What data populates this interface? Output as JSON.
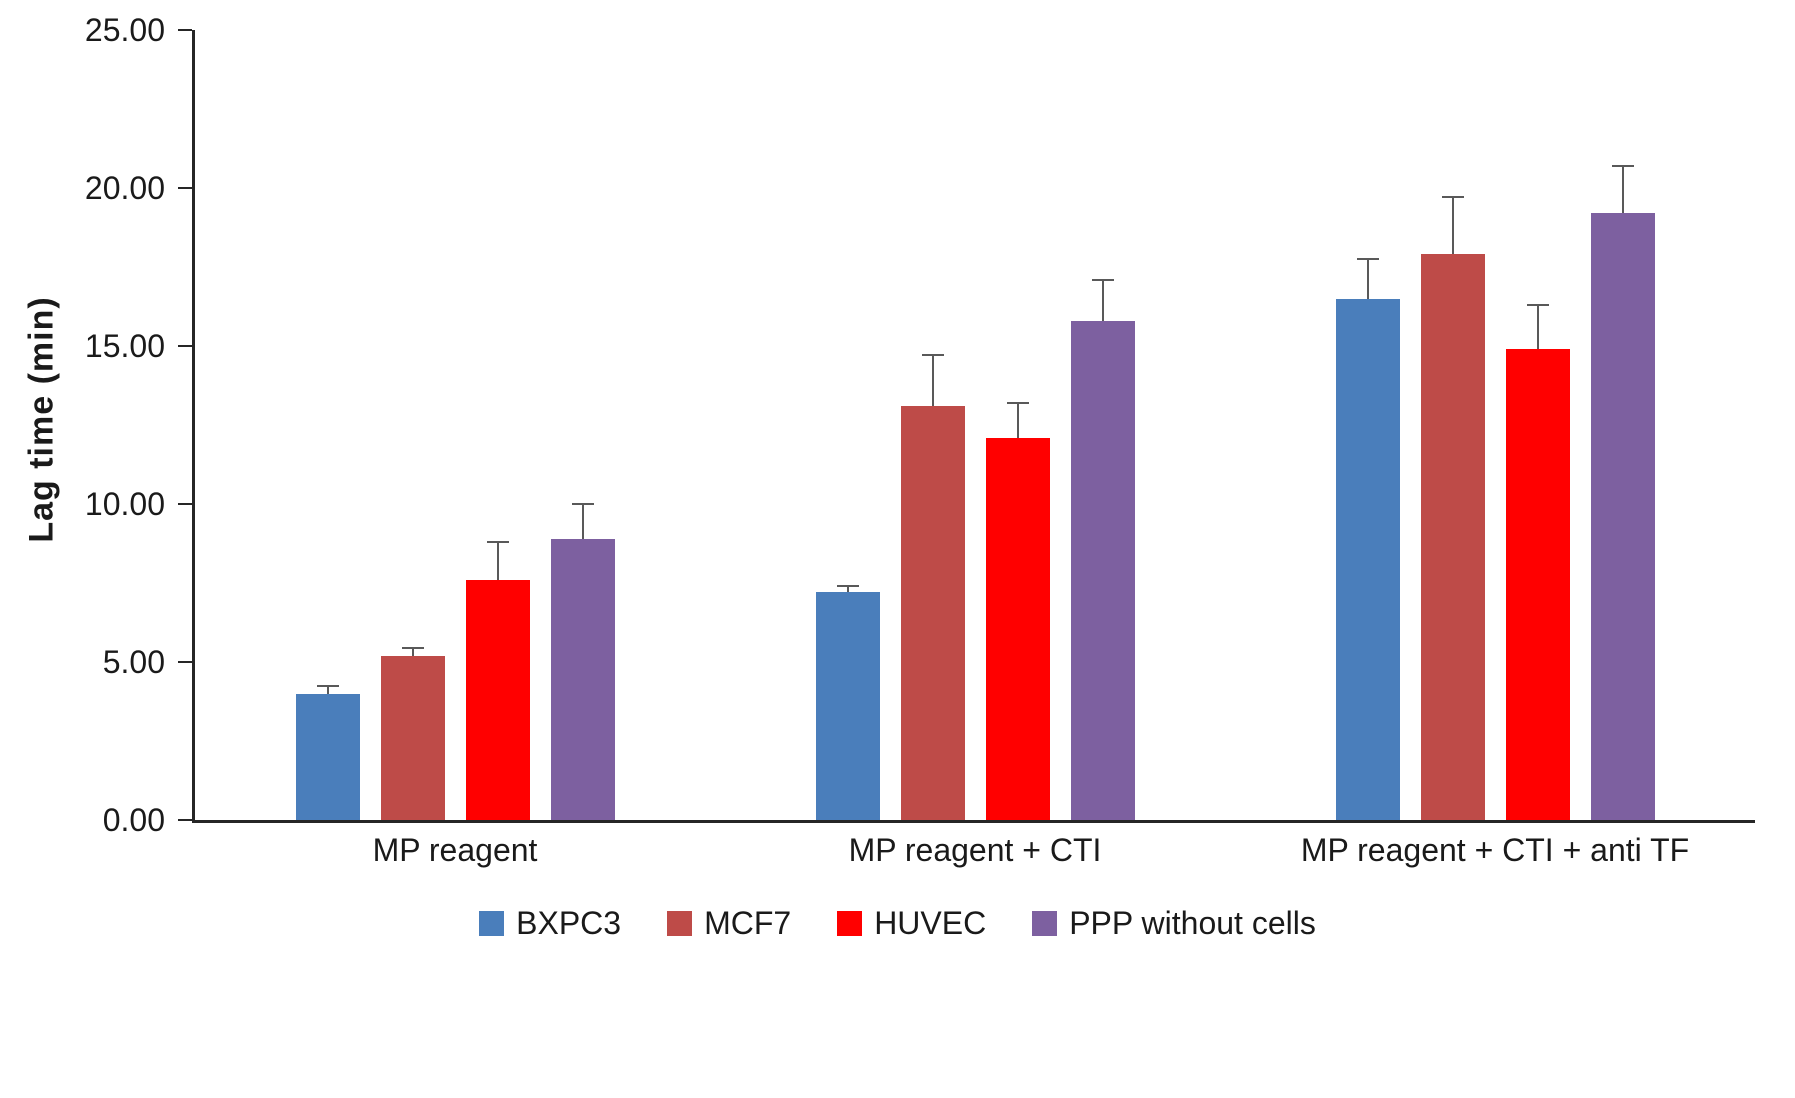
{
  "chart_data": {
    "type": "bar",
    "title": "",
    "xlabel": "",
    "ylabel": "Lag time (min)",
    "ylim": [
      0,
      25
    ],
    "ytick_step": 5,
    "ytick_labels": [
      "0.00",
      "5.00",
      "10.00",
      "15.00",
      "20.00",
      "25.00"
    ],
    "grid": false,
    "legend_position": "bottom",
    "categories": [
      "MP reagent",
      "MP reagent + CTI",
      "MP reagent + CTI + anti TF"
    ],
    "series": [
      {
        "name": "BXPC3",
        "color": "#4A7EBB",
        "values": [
          4.0,
          7.2,
          16.5
        ],
        "errors": [
          0.25,
          0.2,
          1.25
        ]
      },
      {
        "name": "MCF7",
        "color": "#BE4B48",
        "values": [
          5.2,
          13.1,
          17.9
        ],
        "errors": [
          0.25,
          1.6,
          1.8
        ]
      },
      {
        "name": "HUVEC",
        "color": "#FF0000",
        "values": [
          7.6,
          12.1,
          14.9
        ],
        "errors": [
          1.2,
          1.1,
          1.4
        ]
      },
      {
        "name": "PPP without cells",
        "color": "#7D60A0",
        "values": [
          8.9,
          15.8,
          19.2
        ],
        "errors": [
          1.1,
          1.3,
          1.5
        ]
      }
    ]
  }
}
